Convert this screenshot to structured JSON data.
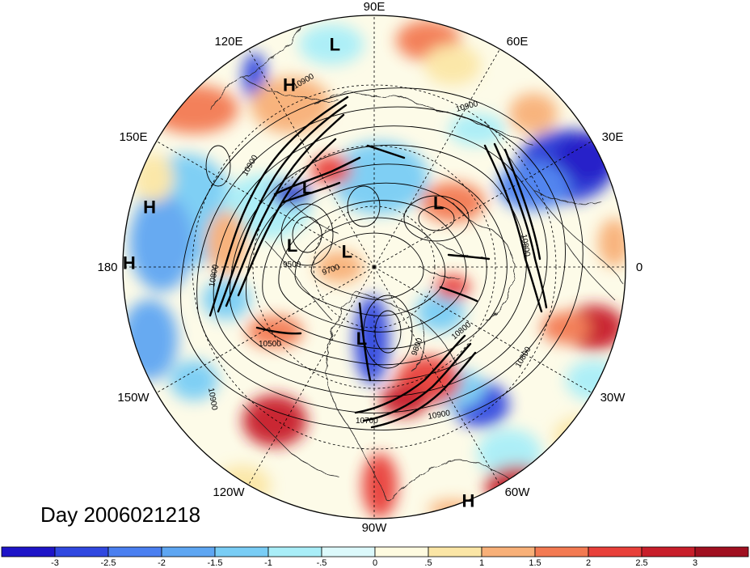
{
  "title": "Day 2006021218",
  "longitude_labels": [
    "90E",
    "60E",
    "30E",
    "0",
    "30W",
    "60W",
    "90W",
    "120W",
    "150W",
    "180",
    "150E",
    "120E"
  ],
  "pressure_centers": [
    {
      "type": "L",
      "lon": 100,
      "lat": 18
    },
    {
      "type": "H",
      "lon": 115,
      "lat": 26
    },
    {
      "type": "H",
      "lon": 165,
      "lat": 16
    },
    {
      "type": "H",
      "lon": 179,
      "lat": 12
    },
    {
      "type": "L",
      "lon": 130,
      "lat": 57
    },
    {
      "type": "L",
      "lon": 165,
      "lat": 63
    },
    {
      "type": "L",
      "lon": 45,
      "lat": 61
    },
    {
      "type": "L",
      "lon": 150,
      "lat": 80
    },
    {
      "type": "L",
      "lon": -100,
      "lat": 67
    },
    {
      "type": "H",
      "lon": -68,
      "lat": 10
    }
  ],
  "contour_labels": [
    "10900",
    "10900",
    "10800",
    "10800",
    "10900",
    "10700",
    "10800",
    "10500",
    "10900",
    "10900",
    "9500",
    "9700",
    "9800",
    "10800"
  ],
  "colorbar": {
    "labels": [
      "-3",
      "-2.5",
      "-2",
      "-1.5",
      "-1",
      "-.5",
      "0",
      ".5",
      "1",
      "1.5",
      "2",
      "2.5",
      "3"
    ],
    "colors": [
      "#1e14c8",
      "#3048e0",
      "#4a7ff0",
      "#5ea6f2",
      "#79cdf5",
      "#a9eef8",
      "#dcf9fb",
      "#fffbe0",
      "#fbe6a6",
      "#f8b078",
      "#f37a52",
      "#e8403a",
      "#c81e2a",
      "#a01020"
    ]
  }
}
